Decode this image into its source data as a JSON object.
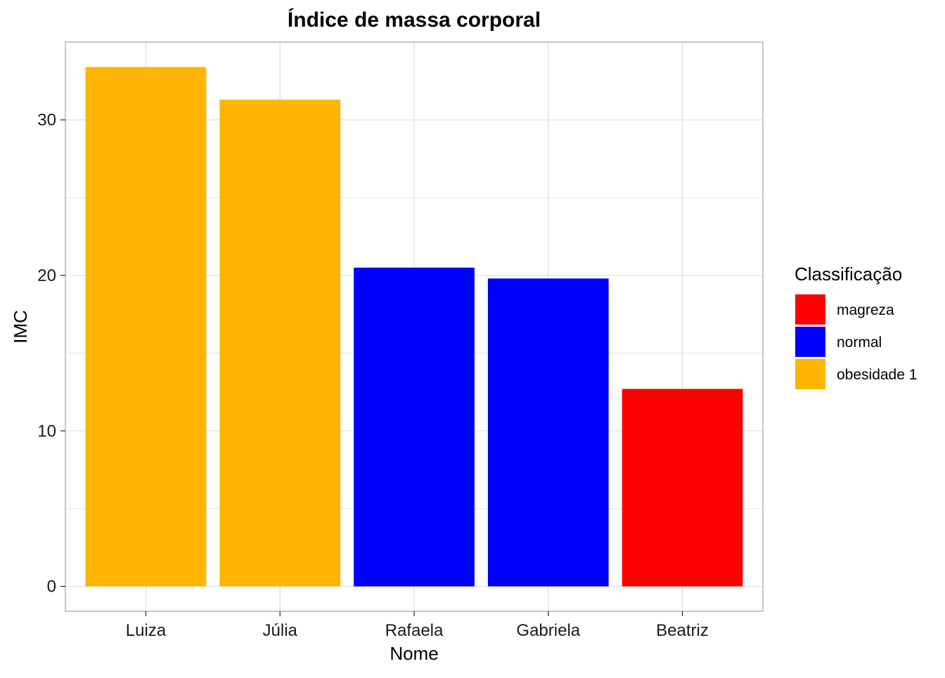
{
  "chart_data": {
    "type": "bar",
    "title": "Índice de massa corporal",
    "xlabel": "Nome",
    "ylabel": "IMC",
    "categories": [
      "Luiza",
      "Júlia",
      "Rafaela",
      "Gabriela",
      "Beatriz"
    ],
    "values": [
      33.4,
      31.3,
      20.5,
      19.8,
      12.7
    ],
    "classes": [
      "obesidade 1",
      "obesidade 1",
      "normal",
      "normal",
      "magreza"
    ],
    "ylim": [
      -1.6,
      35.0
    ],
    "yticks": [
      0,
      10,
      20,
      30
    ],
    "ytick_labels": [
      "0",
      "10",
      "20",
      "30"
    ],
    "grid": true,
    "legend": {
      "title": "Classificação",
      "placement": "right",
      "entries": [
        {
          "label": "magreza",
          "color": "#FF0000"
        },
        {
          "label": "normal",
          "color": "#0000FF"
        },
        {
          "label": "obesidade 1",
          "color": "#FFB400"
        }
      ]
    }
  }
}
